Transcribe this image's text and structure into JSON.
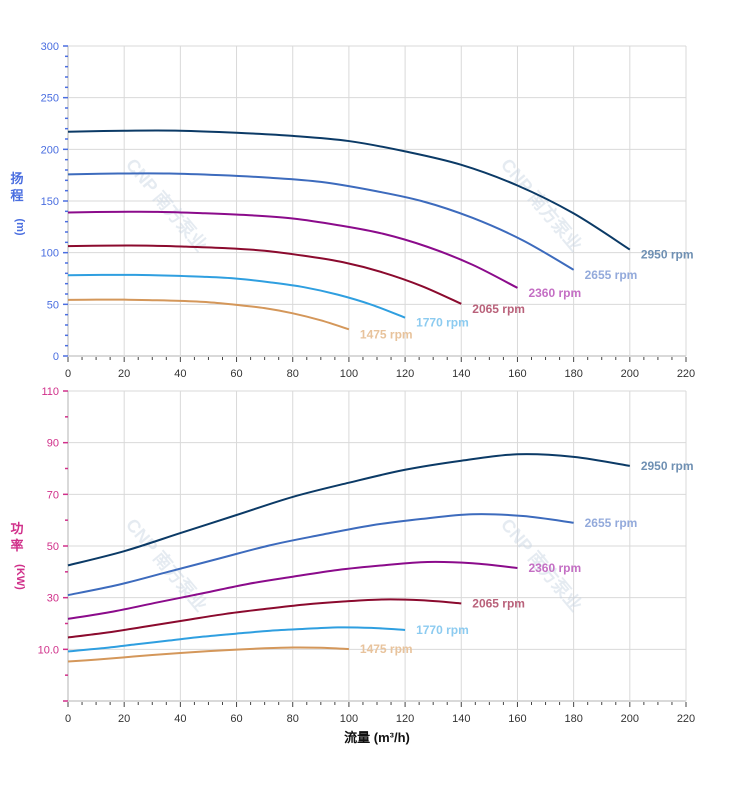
{
  "watermark": "CNP 南方泵业",
  "x_axis": {
    "title": "流量 (m³/h)",
    "range": [
      0,
      220
    ],
    "ticks": [
      0,
      20,
      40,
      60,
      80,
      100,
      120,
      140,
      160,
      180,
      200,
      220
    ],
    "tick_labels": [
      "0",
      "20",
      "40",
      "60",
      "80",
      "100",
      "120",
      "140",
      "160",
      "180",
      "200",
      "220"
    ]
  },
  "chart_data": [
    {
      "type": "line",
      "ylabel_lines": [
        "扬",
        "程",
        "(m)"
      ],
      "ylim": [
        0,
        300
      ],
      "yticks": [
        0,
        50,
        100,
        150,
        200,
        250,
        300
      ],
      "ytick_labels": [
        "0",
        "50",
        "100",
        "150",
        "200",
        "250",
        "300"
      ],
      "axis_color": "#4a6ee0",
      "grid": true,
      "series": [
        {
          "name": "2950 rpm",
          "color": "#0b3a66",
          "label_color": "#6f90b3",
          "x": [
            0,
            20,
            40,
            60,
            80,
            100,
            120,
            140,
            160,
            180,
            200
          ],
          "y": [
            217,
            218,
            218,
            216,
            213,
            208,
            198,
            185,
            165,
            138,
            103
          ]
        },
        {
          "name": "2655 rpm",
          "color": "#3d6bbd",
          "label_color": "#93aadb",
          "x": [
            0,
            18,
            36,
            54,
            72,
            90,
            108,
            126,
            144,
            162,
            180
          ],
          "y": [
            175.8,
            176.6,
            176.6,
            175,
            172.5,
            168.5,
            160.4,
            149.9,
            133.7,
            111.8,
            83.4
          ]
        },
        {
          "name": "2360 rpm",
          "color": "#8b0b8b",
          "label_color": "#c46fc4",
          "x": [
            0,
            16,
            32,
            48,
            64,
            80,
            96,
            112,
            128,
            144,
            160
          ],
          "y": [
            138.9,
            139.5,
            139.5,
            138.2,
            136.3,
            133.1,
            126.7,
            118.4,
            105.6,
            88.3,
            65.9
          ]
        },
        {
          "name": "2065 rpm",
          "color": "#8b0a2e",
          "label_color": "#b9617a",
          "x": [
            0,
            14,
            28,
            42,
            56,
            70,
            84,
            98,
            112,
            126,
            140
          ],
          "y": [
            106.3,
            106.8,
            106.8,
            105.8,
            104.4,
            101.9,
            97.0,
            90.7,
            80.9,
            67.6,
            50.5
          ]
        },
        {
          "name": "1770 rpm",
          "color": "#2f9fe0",
          "label_color": "#8ccbf0",
          "x": [
            0,
            12,
            24,
            36,
            48,
            60,
            72,
            84,
            96,
            108,
            120
          ],
          "y": [
            78.1,
            78.5,
            78.5,
            77.8,
            76.7,
            74.9,
            71.3,
            66.6,
            59.4,
            49.7,
            37.1
          ]
        },
        {
          "name": "1475 rpm",
          "color": "#d4975a",
          "label_color": "#e8c39c",
          "x": [
            0,
            10,
            20,
            30,
            40,
            50,
            60,
            70,
            80,
            90,
            100
          ],
          "y": [
            54.3,
            54.5,
            54.5,
            54,
            53.3,
            52,
            49.5,
            46.3,
            41.3,
            34.5,
            25.8
          ]
        }
      ]
    },
    {
      "type": "line",
      "ylabel_lines": [
        "功",
        "率",
        "(KW)"
      ],
      "ylim": [
        -10,
        110
      ],
      "yticks": [
        10,
        30,
        50,
        70,
        90,
        110
      ],
      "ytick_labels": [
        "10.0",
        "30",
        "50",
        "70",
        "90",
        "110"
      ],
      "axis_color": "#d0308a",
      "grid": true,
      "series": [
        {
          "name": "2950 rpm",
          "color": "#0b3a66",
          "label_color": "#6f90b3",
          "x": [
            0,
            20,
            40,
            60,
            80,
            100,
            120,
            140,
            160,
            180,
            200
          ],
          "y": [
            42.5,
            48,
            55,
            62,
            69,
            74.5,
            79.5,
            83,
            85.5,
            84.5,
            81
          ]
        },
        {
          "name": "2655 rpm",
          "color": "#3d6bbd",
          "label_color": "#93aadb",
          "x": [
            0,
            18,
            36,
            54,
            72,
            90,
            108,
            126,
            144,
            162,
            180
          ],
          "y": [
            31.0,
            35.0,
            40.1,
            45.2,
            50.3,
            54.3,
            58.0,
            60.5,
            62.3,
            61.6,
            59.0
          ]
        },
        {
          "name": "2360 rpm",
          "color": "#8b0b8b",
          "label_color": "#c46fc4",
          "x": [
            0,
            16,
            32,
            48,
            64,
            80,
            96,
            112,
            128,
            144,
            160
          ],
          "y": [
            21.8,
            24.6,
            28.2,
            31.7,
            35.3,
            38.1,
            40.7,
            42.5,
            43.8,
            43.3,
            41.5
          ]
        },
        {
          "name": "2065 rpm",
          "color": "#8b0a2e",
          "label_color": "#b9617a",
          "x": [
            0,
            14,
            28,
            42,
            56,
            70,
            84,
            98,
            112,
            126,
            140
          ],
          "y": [
            14.6,
            16.5,
            18.9,
            21.3,
            23.7,
            25.6,
            27.3,
            28.5,
            29.3,
            29.0,
            27.8
          ]
        },
        {
          "name": "1770 rpm",
          "color": "#2f9fe0",
          "label_color": "#8ccbf0",
          "x": [
            0,
            12,
            24,
            36,
            48,
            60,
            72,
            84,
            96,
            108,
            120
          ],
          "y": [
            9.2,
            10.4,
            11.9,
            13.4,
            14.9,
            16.1,
            17.2,
            17.9,
            18.5,
            18.3,
            17.5
          ]
        },
        {
          "name": "1475 rpm",
          "color": "#d4975a",
          "label_color": "#e8c39c",
          "x": [
            0,
            10,
            20,
            30,
            40,
            50,
            60,
            70,
            80,
            90,
            100
          ],
          "y": [
            5.3,
            6.0,
            6.9,
            7.8,
            8.6,
            9.3,
            9.9,
            10.4,
            10.7,
            10.6,
            10.1
          ]
        }
      ]
    }
  ]
}
